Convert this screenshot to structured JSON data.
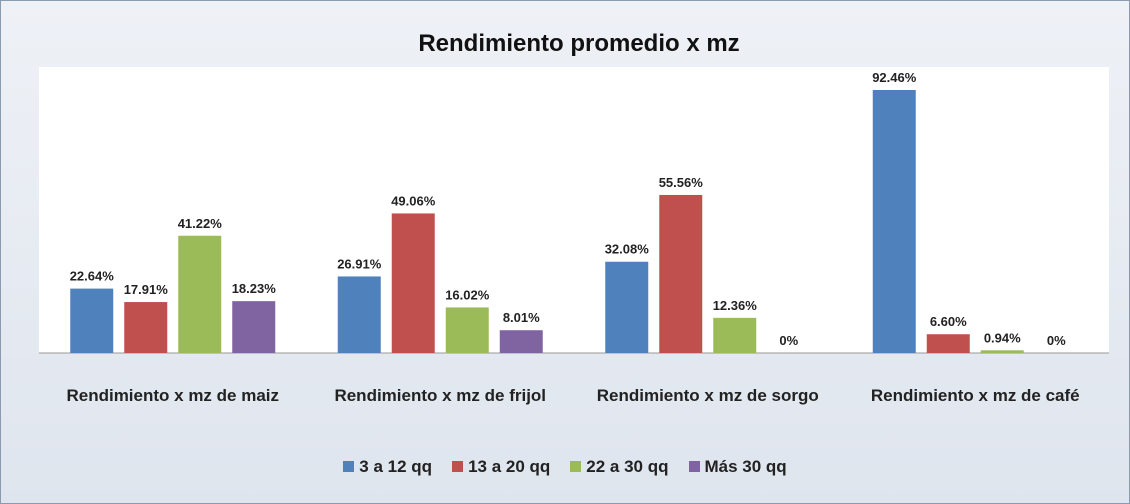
{
  "chart_data": {
    "type": "bar",
    "title": "Rendimiento promedio x mz",
    "categories": [
      "Rendimiento x mz de maiz",
      "Rendimiento x mz de frijol",
      "Rendimiento x mz de sorgo",
      "Rendimiento x mz de café"
    ],
    "series": [
      {
        "name": "3 a 12 qq",
        "color": "#4f81bd",
        "values": [
          22.64,
          26.91,
          32.08,
          92.46
        ],
        "value_labels": [
          "22.64%",
          "26.91%",
          "32.08%",
          "92.46%"
        ]
      },
      {
        "name": "13 a 20 qq",
        "color": "#c0504d",
        "values": [
          17.91,
          49.06,
          55.56,
          6.6
        ],
        "value_labels": [
          "17.91%",
          "49.06%",
          "55.56%",
          "6.60%"
        ]
      },
      {
        "name": "22 a 30 qq",
        "color": "#9bbb59",
        "values": [
          41.22,
          16.02,
          12.36,
          0.94
        ],
        "value_labels": [
          "41.22%",
          "16.02%",
          "12.36%",
          "0.94%"
        ]
      },
      {
        "name": "Más 30 qq",
        "color": "#8064a2",
        "values": [
          18.23,
          8.01,
          0,
          0
        ],
        "value_labels": [
          "18.23%",
          "8.01%",
          "0%",
          "0%"
        ]
      }
    ],
    "legend": "bottom"
  }
}
